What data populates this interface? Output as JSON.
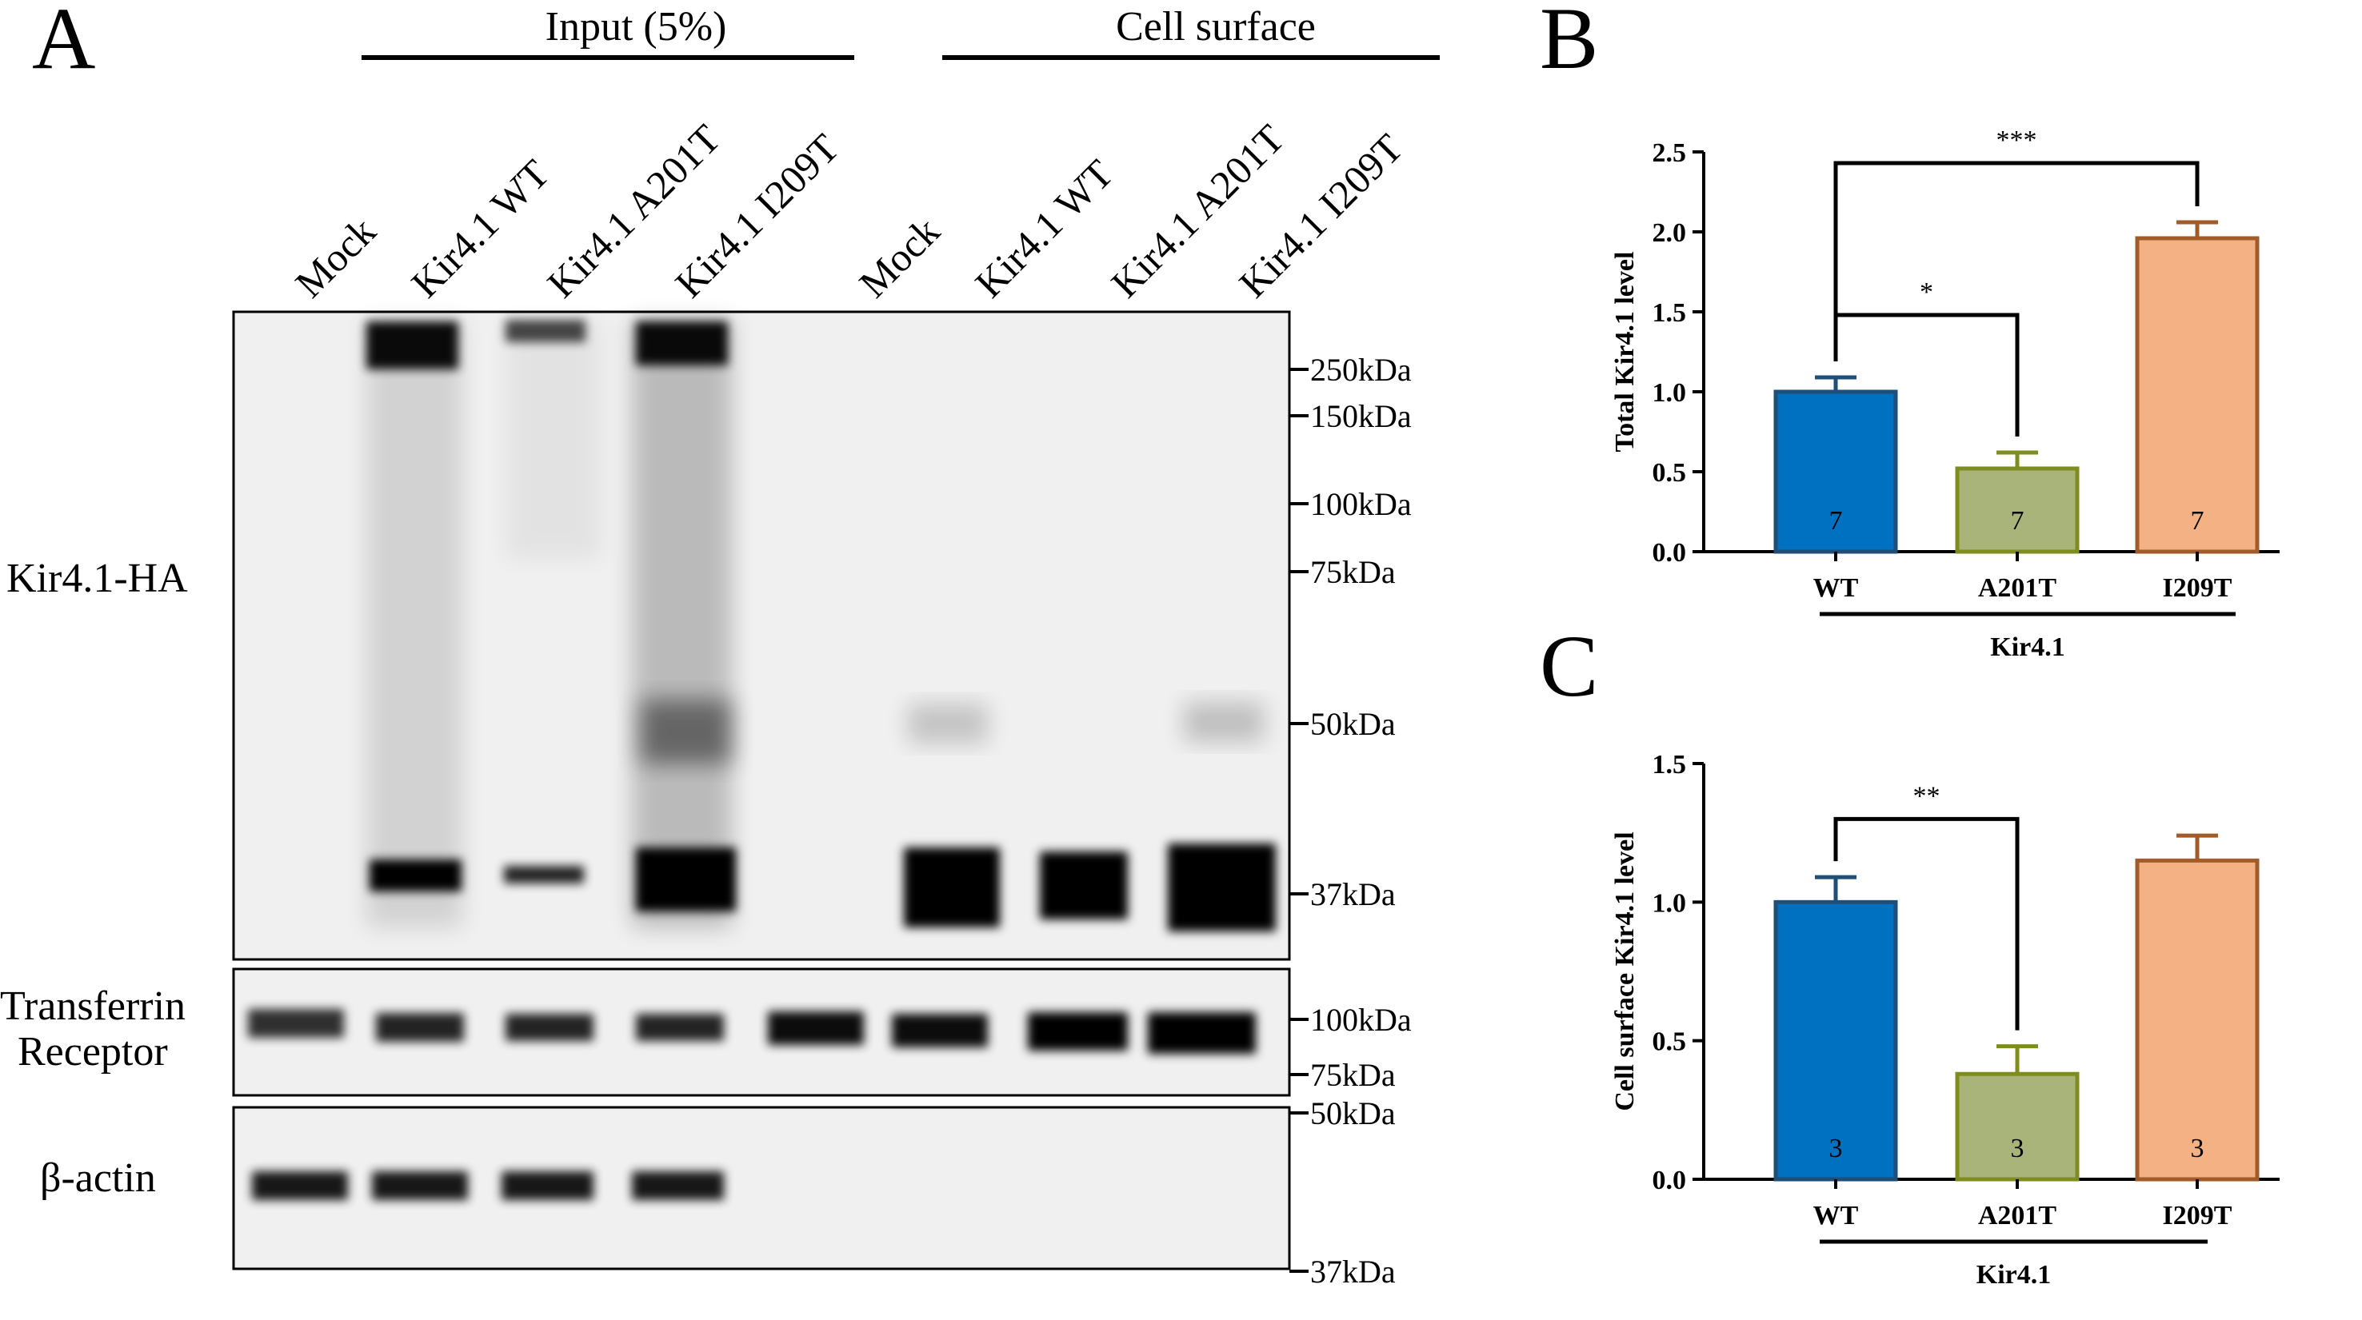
{
  "panel_a": {
    "letter": "A",
    "groups": [
      {
        "label": "Input (5%)"
      },
      {
        "label": "Cell surface"
      }
    ],
    "lanes": [
      "Mock",
      "Kir4.1 WT",
      "Kir4.1 A201T",
      "Kir4.1 I209T",
      "Mock",
      "Kir4.1 WT",
      "Kir4.1 A201T",
      "Kir4.1 I209T"
    ],
    "blots": [
      {
        "label": "Kir4.1-HA",
        "markers": [
          "250kDa",
          "150kDa",
          "100kDa",
          "75kDa",
          "50kDa",
          "37kDa"
        ]
      },
      {
        "label_line1": "Transferrin",
        "label_line2": "Receptor",
        "markers": [
          "100kDa",
          "75kDa"
        ]
      },
      {
        "label": "β-actin",
        "markers": [
          "50kDa",
          "37kDa"
        ]
      }
    ]
  },
  "chart_data": [
    {
      "type": "bar",
      "panel": "B",
      "ylabel": "Total Kir4.1 level",
      "xgroup_label": "Kir4.1",
      "categories": [
        "WT",
        "A201T",
        "I209T"
      ],
      "values": [
        1.0,
        0.52,
        1.96
      ],
      "errors": [
        0.09,
        0.1,
        0.1
      ],
      "n": [
        "7",
        "7",
        "7"
      ],
      "ylim": [
        0,
        2.5
      ],
      "yticks": [
        "0.0",
        "0.5",
        "1.0",
        "1.5",
        "2.0",
        "2.5"
      ],
      "tick_values": [
        0,
        0.5,
        1.0,
        1.5,
        2.0,
        2.5
      ],
      "colors": [
        {
          "fill": "#0070c0",
          "stroke": "#1f4e79"
        },
        {
          "fill": "#a9b47a",
          "stroke": "#7f8c1f"
        },
        {
          "fill": "#f4b183",
          "stroke": "#a15c2a"
        }
      ],
      "significance": [
        {
          "from": 0,
          "to": 2,
          "label": "***",
          "y": 2.43
        },
        {
          "from": 0,
          "to": 1,
          "label": "*",
          "y": 1.48
        }
      ]
    },
    {
      "type": "bar",
      "panel": "C",
      "ylabel": "Cell surface Kir4.1 level",
      "xgroup_label": "Kir4.1",
      "categories": [
        "WT",
        "A201T",
        "I209T"
      ],
      "values": [
        1.0,
        0.38,
        1.15
      ],
      "errors": [
        0.09,
        0.1,
        0.09
      ],
      "n": [
        "3",
        "3",
        "3"
      ],
      "ylim": [
        0,
        1.5
      ],
      "yticks": [
        "0.0",
        "0.5",
        "1.0",
        "1.5"
      ],
      "tick_values": [
        0,
        0.5,
        1.0,
        1.5
      ],
      "colors": [
        {
          "fill": "#0070c0",
          "stroke": "#1f4e79"
        },
        {
          "fill": "#a9b47a",
          "stroke": "#7f8c1f"
        },
        {
          "fill": "#f4b183",
          "stroke": "#a15c2a"
        }
      ],
      "significance": [
        {
          "from": 0,
          "to": 1,
          "label": "**",
          "y": 1.3
        }
      ]
    }
  ]
}
